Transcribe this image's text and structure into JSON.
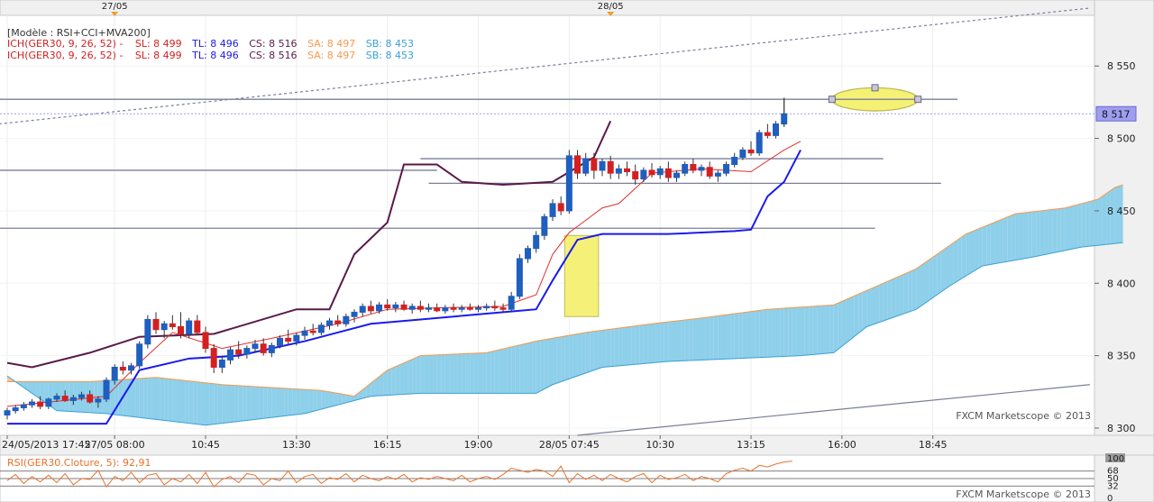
{
  "header": {
    "top_dates": [
      "27/05",
      "28/05"
    ],
    "model_label": "[Modèle : RSI+CCI+MVA200]",
    "ich_lines": [
      {
        "prefix": "ICH(GER30, 9, 26, 52) -",
        "sl": "SL: 8 499",
        "tl": "TL: 8 496",
        "cs": "CS: 8 516",
        "sa": "SA: 8 497",
        "sb": "SB: 8 453"
      },
      {
        "prefix": "ICH(GER30, 9, 26, 52) -",
        "sl": "SL: 8 499",
        "tl": "TL: 8 496",
        "cs": "CS: 8 516",
        "sa": "SA: 8 497",
        "sb": "SB: 8 453"
      }
    ]
  },
  "colors": {
    "background": "#ffffff",
    "axis_panel": "#f0f0f0",
    "bull_candle": "#1f5fbf",
    "bear_candle": "#d42020",
    "tenkan": "#e03030",
    "kijun": "#1a1aee",
    "chikou": "#5a1a4a",
    "cloud_bull": "#8ecfea",
    "cloud_bear": "#f7c49a",
    "senkou_a": "#f59a4a",
    "senkou_b": "#3aa0d8",
    "highlight": "#f5f06a",
    "hline": "#7a7f9a",
    "price_tag": "#9e9ef0",
    "rsi_line": "#e8702a"
  },
  "chart_data": {
    "type": "candlestick",
    "instrument": "GER30",
    "yaxis": {
      "ticks": [
        "8 550",
        "8 500",
        "8 450",
        "8 400",
        "8 350",
        "8 300"
      ],
      "tick_values": [
        8550,
        8500,
        8450,
        8400,
        8350,
        8300
      ],
      "range": [
        8295,
        8585
      ],
      "last_price_label": "8 517",
      "last_price": 8517
    },
    "xaxis": {
      "ticks": [
        "24/05/2013 17:45",
        "27/05 08:00",
        "10:45",
        "13:30",
        "16:15",
        "19:00",
        "28/05 07:45",
        "10:30",
        "13:15",
        "16:00",
        "18:45"
      ],
      "tick_index": [
        0,
        13,
        24,
        35,
        46,
        57,
        68,
        79,
        90,
        101,
        112
      ]
    },
    "candles": [
      [
        8309,
        8314,
        8306,
        8312
      ],
      [
        8312,
        8316,
        8310,
        8314
      ],
      [
        8314,
        8318,
        8312,
        8316
      ],
      [
        8316,
        8320,
        8314,
        8318
      ],
      [
        8318,
        8322,
        8313,
        8315
      ],
      [
        8315,
        8321,
        8313,
        8320
      ],
      [
        8320,
        8324,
        8318,
        8322
      ],
      [
        8322,
        8326,
        8318,
        8319
      ],
      [
        8319,
        8323,
        8316,
        8321
      ],
      [
        8321,
        8325,
        8319,
        8323
      ],
      [
        8323,
        8326,
        8317,
        8318
      ],
      [
        8318,
        8322,
        8314,
        8320
      ],
      [
        8320,
        8335,
        8318,
        8333
      ],
      [
        8333,
        8344,
        8330,
        8342
      ],
      [
        8342,
        8346,
        8337,
        8340
      ],
      [
        8340,
        8345,
        8337,
        8343
      ],
      [
        8343,
        8360,
        8341,
        8358
      ],
      [
        8358,
        8378,
        8355,
        8375
      ],
      [
        8375,
        8380,
        8365,
        8368
      ],
      [
        8368,
        8374,
        8362,
        8372
      ],
      [
        8372,
        8378,
        8368,
        8370
      ],
      [
        8370,
        8380,
        8362,
        8365
      ],
      [
        8365,
        8376,
        8362,
        8374
      ],
      [
        8374,
        8378,
        8364,
        8366
      ],
      [
        8366,
        8370,
        8352,
        8355
      ],
      [
        8355,
        8358,
        8338,
        8342
      ],
      [
        8342,
        8350,
        8338,
        8347
      ],
      [
        8347,
        8356,
        8344,
        8354
      ],
      [
        8354,
        8360,
        8348,
        8351
      ],
      [
        8351,
        8357,
        8348,
        8355
      ],
      [
        8355,
        8361,
        8352,
        8358
      ],
      [
        8358,
        8362,
        8350,
        8352
      ],
      [
        8352,
        8359,
        8349,
        8357
      ],
      [
        8357,
        8364,
        8355,
        8362
      ],
      [
        8362,
        8368,
        8358,
        8360
      ],
      [
        8360,
        8366,
        8357,
        8364
      ],
      [
        8364,
        8370,
        8361,
        8367
      ],
      [
        8367,
        8372,
        8364,
        8366
      ],
      [
        8366,
        8373,
        8364,
        8371
      ],
      [
        8371,
        8376,
        8368,
        8374
      ],
      [
        8374,
        8378,
        8370,
        8372
      ],
      [
        8372,
        8379,
        8370,
        8377
      ],
      [
        8377,
        8382,
        8373,
        8380
      ],
      [
        8380,
        8386,
        8377,
        8384
      ],
      [
        8384,
        8388,
        8379,
        8381
      ],
      [
        8381,
        8387,
        8379,
        8385
      ],
      [
        8385,
        8389,
        8381,
        8383
      ],
      [
        8383,
        8387,
        8380,
        8385
      ],
      [
        8385,
        8388,
        8381,
        8382
      ],
      [
        8382,
        8386,
        8379,
        8384
      ],
      [
        8384,
        8388,
        8380,
        8382
      ],
      [
        8382,
        8386,
        8380,
        8383
      ],
      [
        8383,
        8386,
        8380,
        8381
      ],
      [
        8381,
        8385,
        8379,
        8383
      ],
      [
        8383,
        8386,
        8380,
        8382
      ],
      [
        8382,
        8385,
        8380,
        8383
      ],
      [
        8383,
        8386,
        8381,
        8382
      ],
      [
        8382,
        8385,
        8380,
        8383
      ],
      [
        8383,
        8386,
        8381,
        8384
      ],
      [
        8384,
        8388,
        8381,
        8383
      ],
      [
        8383,
        8386,
        8380,
        8382
      ],
      [
        8382,
        8394,
        8380,
        8391
      ],
      [
        8391,
        8420,
        8389,
        8417
      ],
      [
        8417,
        8426,
        8414,
        8424
      ],
      [
        8424,
        8436,
        8421,
        8433
      ],
      [
        8433,
        8448,
        8430,
        8446
      ],
      [
        8446,
        8458,
        8443,
        8455
      ],
      [
        8455,
        8460,
        8447,
        8450
      ],
      [
        8450,
        8492,
        8448,
        8488
      ],
      [
        8488,
        8492,
        8472,
        8476
      ],
      [
        8476,
        8490,
        8474,
        8486
      ],
      [
        8486,
        8490,
        8472,
        8478
      ],
      [
        8478,
        8486,
        8474,
        8484
      ],
      [
        8484,
        8488,
        8472,
        8476
      ],
      [
        8476,
        8482,
        8472,
        8479
      ],
      [
        8479,
        8484,
        8474,
        8477
      ],
      [
        8477,
        8482,
        8468,
        8472
      ],
      [
        8472,
        8480,
        8470,
        8478
      ],
      [
        8478,
        8483,
        8473,
        8475
      ],
      [
        8475,
        8481,
        8472,
        8479
      ],
      [
        8479,
        8484,
        8470,
        8473
      ],
      [
        8473,
        8478,
        8470,
        8476
      ],
      [
        8476,
        8484,
        8474,
        8482
      ],
      [
        8482,
        8486,
        8476,
        8478
      ],
      [
        8478,
        8482,
        8474,
        8480
      ],
      [
        8480,
        8484,
        8472,
        8474
      ],
      [
        8474,
        8478,
        8470,
        8476
      ],
      [
        8476,
        8484,
        8474,
        8482
      ],
      [
        8482,
        8490,
        8480,
        8487
      ],
      [
        8487,
        8494,
        8485,
        8492
      ],
      [
        8492,
        8498,
        8488,
        8490
      ],
      [
        8490,
        8506,
        8488,
        8504
      ],
      [
        8504,
        8510,
        8500,
        8502
      ],
      [
        8502,
        8512,
        8500,
        8510
      ],
      [
        8510,
        8528,
        8508,
        8517
      ]
    ],
    "indicators": {
      "ichimoku": {
        "params": "GER30, 9, 26, 52",
        "tenkan_sen": [
          [
            0,
            8315
          ],
          [
            12,
            8322
          ],
          [
            16,
            8345
          ],
          [
            20,
            8366
          ],
          [
            26,
            8355
          ],
          [
            32,
            8362
          ],
          [
            40,
            8372
          ],
          [
            46,
            8382
          ],
          [
            52,
            8383
          ],
          [
            60,
            8384
          ],
          [
            64,
            8392
          ],
          [
            66,
            8420
          ],
          [
            68,
            8435
          ],
          [
            72,
            8452
          ],
          [
            74,
            8455
          ],
          [
            78,
            8476
          ],
          [
            84,
            8479
          ],
          [
            90,
            8477
          ],
          [
            94,
            8492
          ],
          [
            96,
            8498
          ]
        ],
        "kijun_sen": [
          [
            0,
            8303
          ],
          [
            12,
            8303
          ],
          [
            16,
            8340
          ],
          [
            22,
            8348
          ],
          [
            28,
            8350
          ],
          [
            36,
            8360
          ],
          [
            44,
            8372
          ],
          [
            50,
            8375
          ],
          [
            60,
            8380
          ],
          [
            64,
            8382
          ],
          [
            66,
            8402
          ],
          [
            69,
            8430
          ],
          [
            72,
            8434
          ],
          [
            80,
            8434
          ],
          [
            88,
            8436
          ],
          [
            90,
            8437
          ],
          [
            92,
            8460
          ],
          [
            94,
            8470
          ],
          [
            96,
            8492
          ]
        ],
        "chikou_span": [
          [
            0,
            8345
          ],
          [
            3,
            8342
          ],
          [
            10,
            8352
          ],
          [
            16,
            8363
          ],
          [
            25,
            8365
          ],
          [
            35,
            8382
          ],
          [
            39,
            8382
          ],
          [
            42,
            8420
          ],
          [
            46,
            8442
          ],
          [
            48,
            8482
          ],
          [
            52,
            8482
          ],
          [
            55,
            8470
          ],
          [
            60,
            8468
          ],
          [
            66,
            8470
          ],
          [
            71,
            8487
          ],
          [
            73,
            8512
          ]
        ],
        "cloud_upper": [
          [
            0,
            8332
          ],
          [
            10,
            8332
          ],
          [
            18,
            8335
          ],
          [
            26,
            8330
          ],
          [
            32,
            8328
          ],
          [
            38,
            8326
          ],
          [
            42,
            8322
          ],
          [
            46,
            8340
          ],
          [
            50,
            8350
          ],
          [
            58,
            8352
          ],
          [
            64,
            8360
          ],
          [
            70,
            8366
          ],
          [
            78,
            8372
          ],
          [
            84,
            8376
          ],
          [
            92,
            8382
          ],
          [
            100,
            8385
          ],
          [
            106,
            8400
          ],
          [
            110,
            8410
          ],
          [
            116,
            8434
          ],
          [
            122,
            8448
          ],
          [
            128,
            8452
          ],
          [
            132,
            8458
          ],
          [
            134,
            8466
          ],
          [
            135,
            8468
          ]
        ],
        "cloud_lower": [
          [
            0,
            8336
          ],
          [
            6,
            8312
          ],
          [
            12,
            8310
          ],
          [
            18,
            8306
          ],
          [
            24,
            8302
          ],
          [
            30,
            8306
          ],
          [
            36,
            8310
          ],
          [
            44,
            8322
          ],
          [
            50,
            8324
          ],
          [
            58,
            8324
          ],
          [
            64,
            8324
          ],
          [
            66,
            8330
          ],
          [
            72,
            8342
          ],
          [
            80,
            8346
          ],
          [
            88,
            8348
          ],
          [
            96,
            8350
          ],
          [
            100,
            8352
          ],
          [
            104,
            8370
          ],
          [
            110,
            8382
          ],
          [
            114,
            8398
          ],
          [
            118,
            8412
          ],
          [
            124,
            8418
          ],
          [
            130,
            8425
          ],
          [
            135,
            8428
          ]
        ]
      },
      "rsi": {
        "label": "RSI(GER30.Cloture, 5): 92,91",
        "ticks": [
          "100",
          "68",
          "50",
          "32",
          "0"
        ],
        "tick_values": [
          100,
          68,
          50,
          32,
          0
        ],
        "values": [
          45,
          60,
          38,
          55,
          42,
          58,
          40,
          62,
          35,
          50,
          48,
          70,
          30,
          55,
          45,
          65,
          40,
          58,
          62,
          35,
          50,
          42,
          60,
          38,
          65,
          30,
          48,
          55,
          40,
          62,
          58,
          35,
          50,
          45,
          68,
          40,
          55,
          60,
          38,
          52,
          48,
          62,
          42,
          58,
          50,
          45,
          55,
          48,
          60,
          42,
          52,
          48,
          55,
          50,
          45,
          58,
          42,
          50,
          55,
          48,
          60,
          75,
          70,
          65,
          72,
          68,
          55,
          80,
          40,
          62,
          48,
          58,
          45,
          60,
          50,
          42,
          55,
          62,
          40,
          58,
          48,
          52,
          60,
          45,
          55,
          50,
          42,
          62,
          70,
          75,
          68,
          82,
          78,
          85,
          90,
          92
        ]
      }
    },
    "lines": [
      {
        "kind": "horizontal",
        "value": 8527,
        "from_index": -1,
        "to_index": 115
      },
      {
        "kind": "horizontal",
        "value": 8478,
        "from_index": -1,
        "to_index": 52
      },
      {
        "kind": "horizontal",
        "value": 8486,
        "from_index": 50,
        "to_index": 106
      },
      {
        "kind": "horizontal",
        "value": 8469,
        "from_index": 51,
        "to_index": 113
      },
      {
        "kind": "horizontal",
        "value": 8438,
        "from_index": -1,
        "to_index": 105
      },
      {
        "kind": "dotted-trend",
        "from": [
          -1,
          8510
        ],
        "to": [
          131,
          8590
        ]
      },
      {
        "kind": "trend",
        "from": [
          69,
          8295
        ],
        "to": [
          131,
          8330
        ]
      }
    ],
    "annotations": [
      {
        "kind": "highlight-rect",
        "from_index": 68,
        "to_index": 71,
        "ymin": 8377,
        "ymax": 8433
      },
      {
        "kind": "ellipse",
        "center_index": 105,
        "center_value": 8527,
        "half_width_bars": 5.2,
        "half_height_value": 8
      }
    ]
  },
  "watermarks": [
    "FXCM Marketscope © 2013",
    "FXCM Marketscope © 2013"
  ]
}
